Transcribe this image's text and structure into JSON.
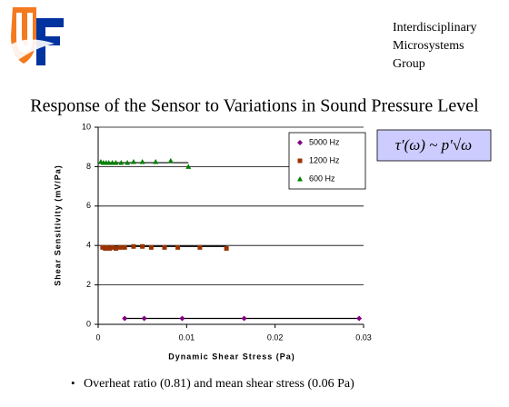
{
  "header": {
    "group": [
      "Interdisciplinary",
      "Microsystems",
      "Group"
    ]
  },
  "formula": "τ′(ω) ~ p′√ω",
  "bullet": "Overheat ratio (0.81) and mean shear stress (0.06 Pa)",
  "chart_data": {
    "type": "scatter",
    "title": "Response of the Sensor to Variations in Sound Pressure Level",
    "x_label": "Dynamic Shear Stress (Pa)",
    "y_label": "Shear Sensitivity (mV/Pa)",
    "xlim": [
      0,
      0.03
    ],
    "xticks": [
      0,
      0.01,
      0.02,
      0.03
    ],
    "ylim": [
      0,
      10
    ],
    "yticks": [
      0,
      2,
      4,
      6,
      8,
      10
    ],
    "grid": true,
    "legend": "top-right",
    "series": [
      {
        "name": "5000 Hz",
        "color": "#800080",
        "marker": "diamond",
        "x": [
          0.003,
          0.0052,
          0.0095,
          0.0165,
          0.0295
        ],
        "values": [
          0.3,
          0.3,
          0.3,
          0.3,
          0.3
        ],
        "trendline": {
          "x": [
            0.003,
            0.0295
          ],
          "y": [
            0.3,
            0.3
          ]
        }
      },
      {
        "name": "1200 Hz",
        "color": "#993300",
        "marker": "square",
        "x": [
          0.0005,
          0.0008,
          0.001,
          0.0013,
          0.0016,
          0.002,
          0.0025,
          0.003,
          0.004,
          0.005,
          0.006,
          0.0075,
          0.009,
          0.0115,
          0.0145
        ],
        "values": [
          3.9,
          3.85,
          3.9,
          3.85,
          3.9,
          3.85,
          3.9,
          3.9,
          3.95,
          3.95,
          3.9,
          3.9,
          3.9,
          3.9,
          3.85
        ],
        "trendline": {
          "x": [
            0.0005,
            0.0145
          ],
          "y": [
            3.95,
            3.95
          ]
        }
      },
      {
        "name": "600 Hz",
        "color": "#008000",
        "marker": "triangle",
        "x": [
          0.0003,
          0.0006,
          0.0009,
          0.0012,
          0.0016,
          0.002,
          0.0026,
          0.0033,
          0.004,
          0.005,
          0.0065,
          0.0082,
          0.0102
        ],
        "values": [
          8.25,
          8.2,
          8.2,
          8.2,
          8.2,
          8.2,
          8.2,
          8.2,
          8.25,
          8.25,
          8.25,
          8.3,
          8.0
        ],
        "trendline": {
          "x": [
            0.0003,
            0.0102
          ],
          "y": [
            8.2,
            8.2
          ]
        }
      }
    ]
  }
}
